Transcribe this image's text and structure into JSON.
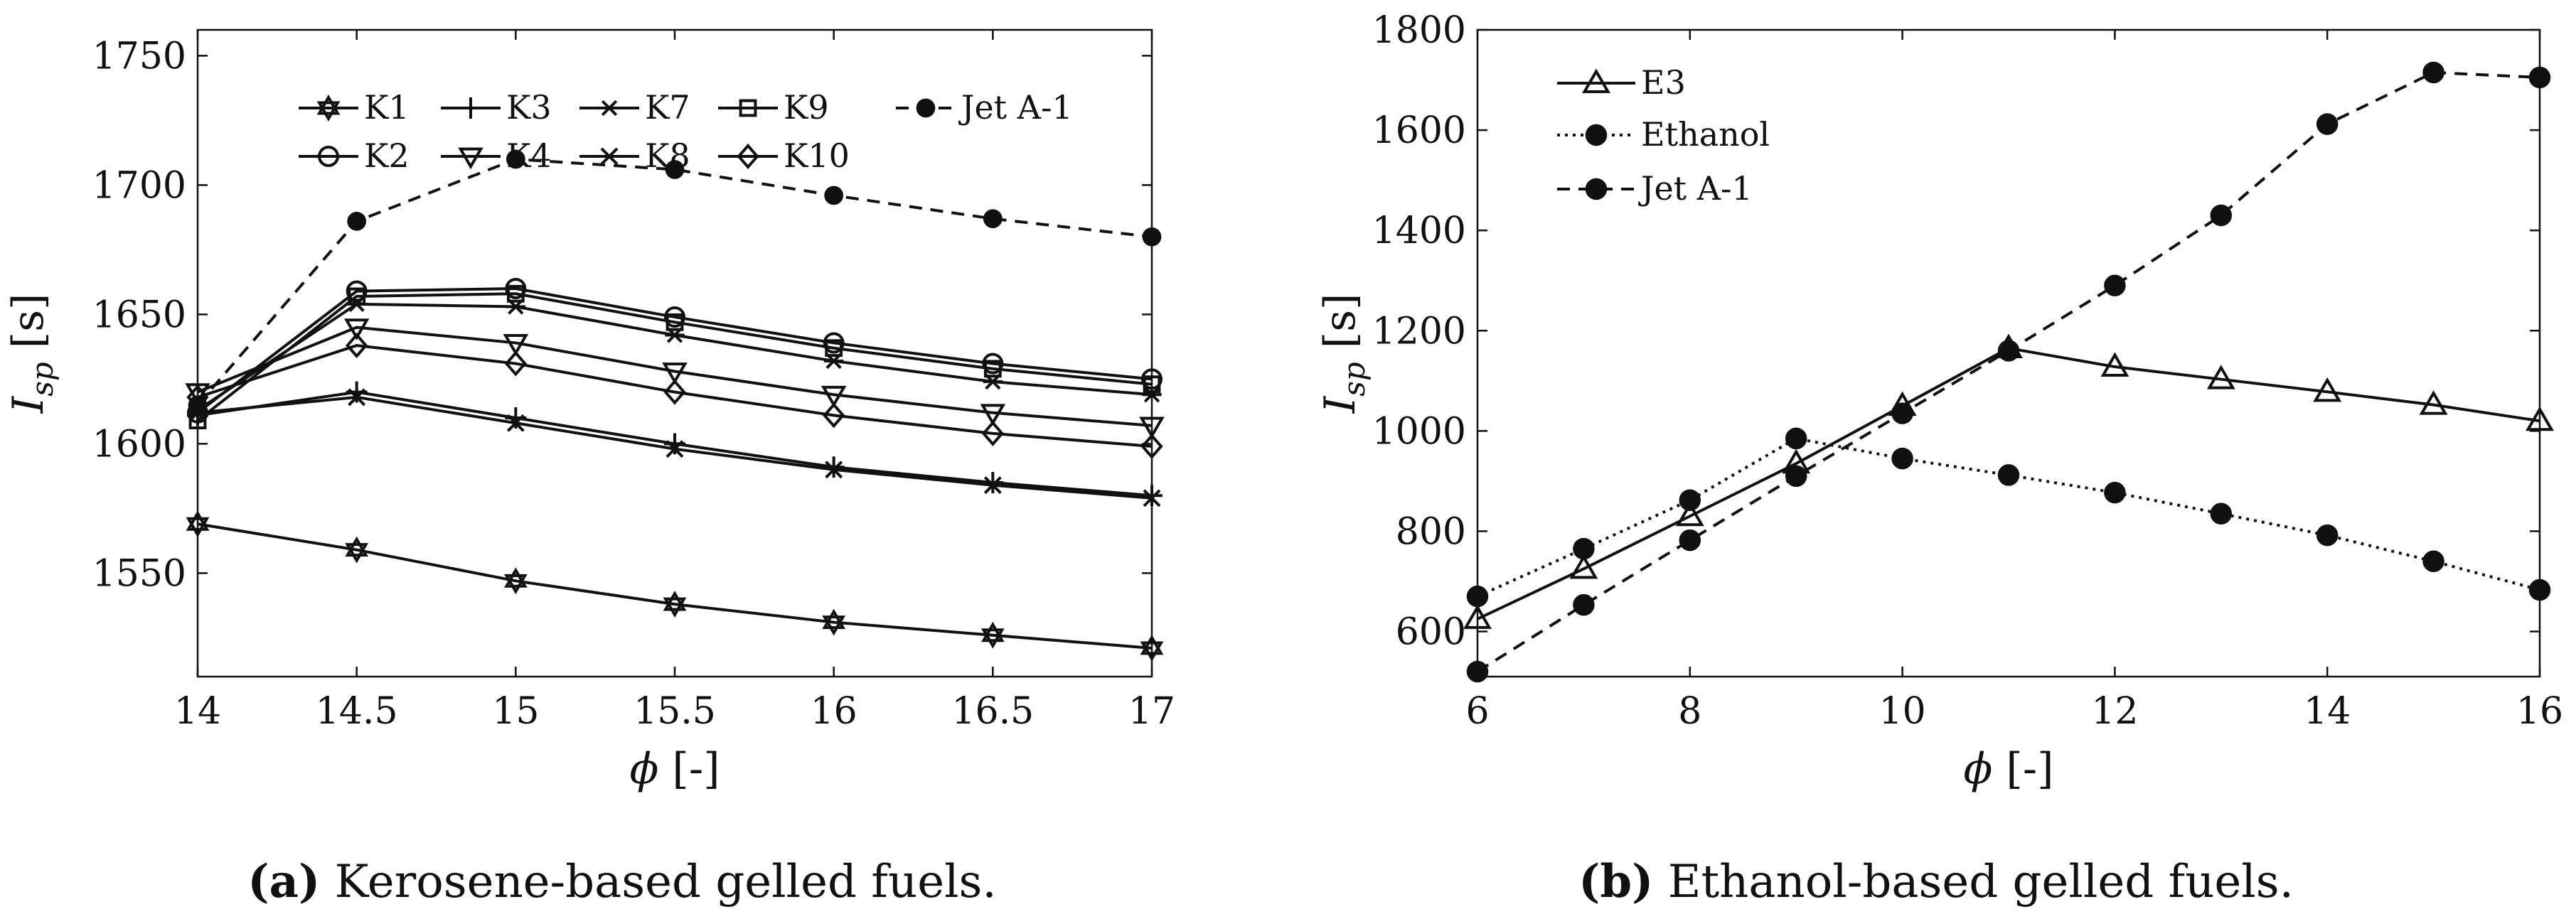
{
  "chart_data": [
    {
      "type": "line",
      "id": "a",
      "xlabel_symbol": "ϕ",
      "xlabel_unit": "[-]",
      "ylabel_symbol": "I",
      "ylabel_sub": "sp",
      "ylabel_unit": "[s]",
      "xlim": [
        14,
        17
      ],
      "ylim": [
        1510,
        1760
      ],
      "xticks": [
        14,
        14.5,
        15,
        15.5,
        16,
        16.5,
        17
      ],
      "xtick_labels": [
        "14",
        "14.5",
        "15",
        "15.5",
        "16",
        "16.5",
        "17"
      ],
      "yticks": [
        1550,
        1600,
        1650,
        1700,
        1750
      ],
      "ytick_labels": [
        "1550",
        "1600",
        "1650",
        "1700",
        "1750"
      ],
      "x": [
        14,
        14.5,
        15,
        15.5,
        16,
        16.5,
        17
      ],
      "legend_position": "top",
      "series": [
        {
          "name": "K1",
          "marker": "hexagram",
          "dash": "solid",
          "values": [
            1569,
            1559,
            1547,
            1538,
            1531,
            1526,
            1521
          ]
        },
        {
          "name": "K3",
          "marker": "plus",
          "dash": "solid",
          "values": [
            1611,
            1620,
            1610,
            1600,
            1591,
            1585,
            1580
          ]
        },
        {
          "name": "K7",
          "marker": "asterisk",
          "dash": "solid",
          "values": [
            1613,
            1654,
            1653,
            1642,
            1632,
            1624,
            1619
          ]
        },
        {
          "name": "K9",
          "marker": "square",
          "dash": "solid",
          "values": [
            1609,
            1657,
            1658,
            1647,
            1637,
            1629,
            1623
          ]
        },
        {
          "name": "Jet A-1",
          "marker": "dot",
          "dash": "dashed",
          "values": [
            1615,
            1686,
            1710,
            1706,
            1696,
            1687,
            1680
          ]
        },
        {
          "name": "K2",
          "marker": "circle",
          "dash": "solid",
          "values": [
            1612,
            1659,
            1660,
            1649,
            1639,
            1631,
            1625
          ]
        },
        {
          "name": "K4",
          "marker": "triangle-down",
          "dash": "solid",
          "values": [
            1620,
            1645,
            1639,
            1628,
            1619,
            1612,
            1607
          ]
        },
        {
          "name": "K8",
          "marker": "x",
          "dash": "solid",
          "values": [
            1612,
            1618,
            1608,
            1598,
            1590,
            1584,
            1579
          ]
        },
        {
          "name": "K10",
          "marker": "diamond",
          "dash": "solid",
          "values": [
            1618,
            1638,
            1631,
            1620,
            1611,
            1604,
            1599
          ]
        }
      ]
    },
    {
      "type": "line",
      "id": "b",
      "xlabel_symbol": "ϕ",
      "xlabel_unit": "[-]",
      "ylabel_symbol": "I",
      "ylabel_sub": "sp",
      "ylabel_unit": "[s]",
      "xlim": [
        6,
        16
      ],
      "ylim": [
        510,
        1800
      ],
      "xticks": [
        6,
        8,
        10,
        12,
        14,
        16
      ],
      "xtick_labels": [
        "6",
        "8",
        "10",
        "12",
        "14",
        "16"
      ],
      "yticks": [
        600,
        800,
        1000,
        1200,
        1400,
        1600,
        1800
      ],
      "ytick_labels": [
        "600",
        "800",
        "1000",
        "1200",
        "1400",
        "1600",
        "1800"
      ],
      "x": [
        6,
        7,
        8,
        9,
        10,
        11,
        12,
        13,
        14,
        15,
        16
      ],
      "legend_position": "top-left",
      "series": [
        {
          "name": "E3",
          "marker": "triangle-up",
          "dash": "solid",
          "values": [
            625,
            725,
            830,
            935,
            1050,
            1165,
            1128,
            1103,
            1078,
            1052,
            1020
          ]
        },
        {
          "name": "Ethanol",
          "marker": "dot",
          "dash": "dotted",
          "values": [
            670,
            765,
            862,
            985,
            945,
            912,
            877,
            835,
            792,
            740,
            683
          ]
        },
        {
          "name": "Jet A-1",
          "marker": "dot",
          "dash": "dashed",
          "values": [
            520,
            653,
            782,
            910,
            1035,
            1160,
            1290,
            1430,
            1612,
            1715,
            1705
          ]
        }
      ]
    }
  ],
  "captions": [
    {
      "label": "(a)",
      "text": " Kerosene-based gelled fuels."
    },
    {
      "label": "(b)",
      "text": " Ethanol-based gelled fuels."
    }
  ],
  "colors": {
    "line": "#111111",
    "background": "#ffffff"
  }
}
